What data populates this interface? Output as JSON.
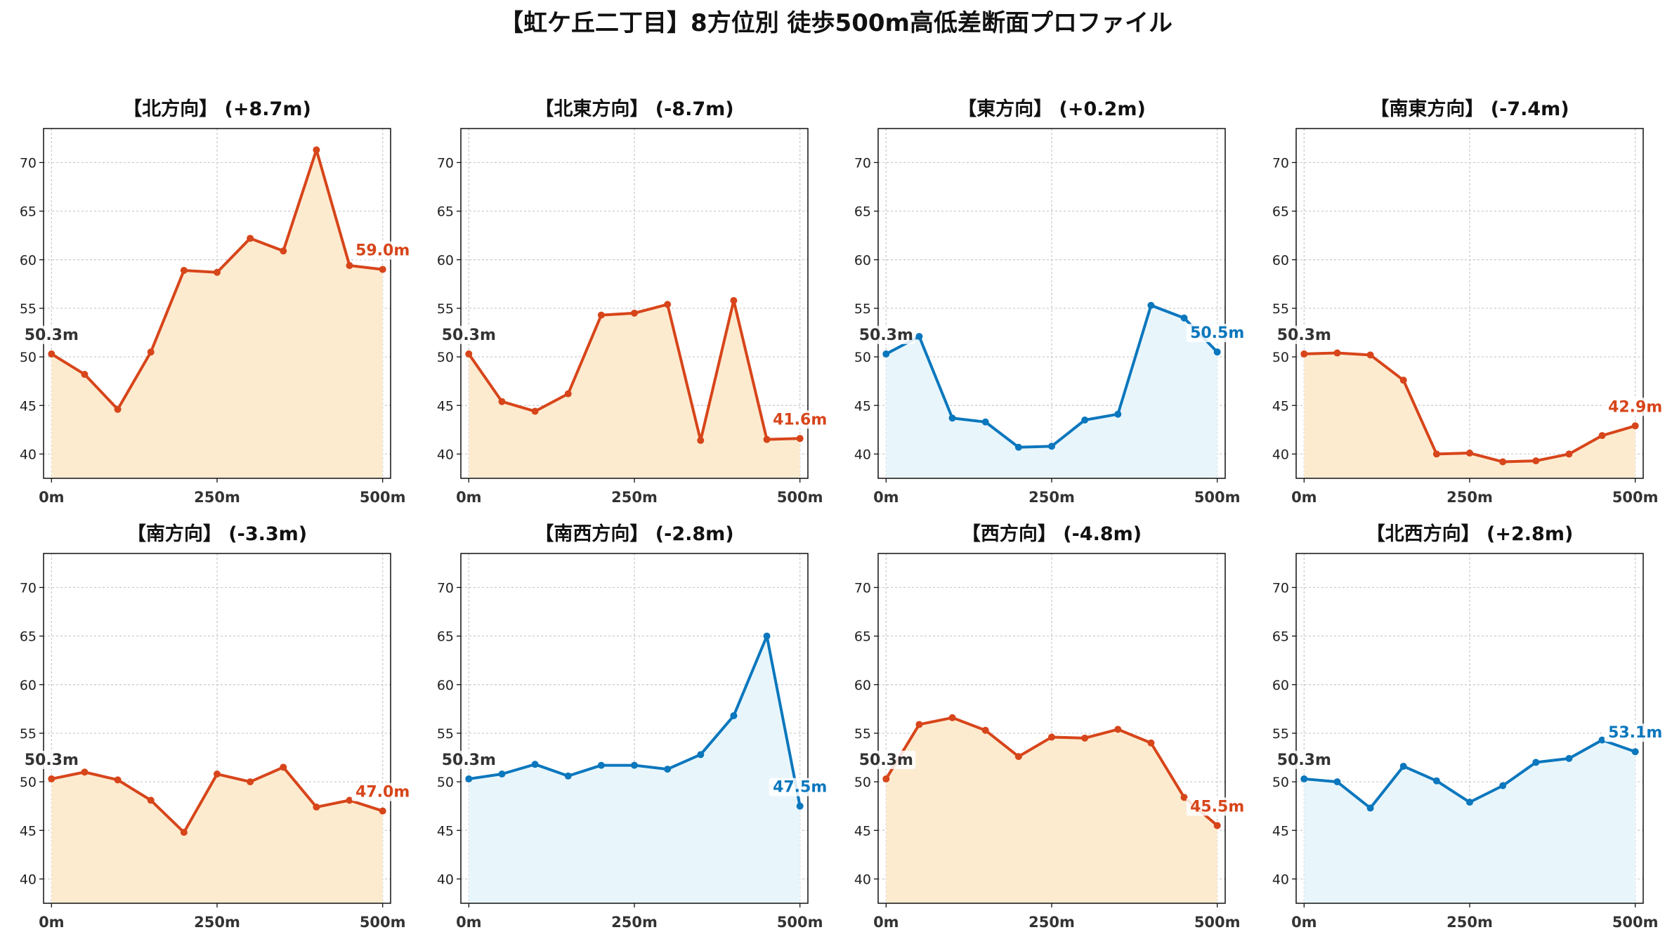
{
  "title": "【虹ケ丘二丁目】8方位別 徒歩500m高低差断面プロファイル",
  "colors": {
    "ascent_line": "#d7451a",
    "ascent_fill": "#fdebd0",
    "descent_line": "#0b77bd",
    "descent_fill": "#e8f6fc",
    "start_label": "#333333",
    "grid": "#c8c8c8"
  },
  "chart_data": [
    {
      "type": "area",
      "title": "【北方向】 (+8.7m)",
      "color_scheme": "ascent",
      "x": [
        0,
        50,
        100,
        150,
        200,
        250,
        300,
        350,
        400,
        450,
        500
      ],
      "y": [
        50.3,
        48.2,
        44.6,
        50.5,
        58.9,
        58.7,
        62.2,
        60.9,
        71.3,
        59.4,
        59.0
      ],
      "start_label": "50.3m",
      "end_label": "59.0m",
      "ylim": [
        37.5,
        73.5
      ],
      "xlim": [
        -12,
        512
      ],
      "yticks": [
        40,
        45,
        50,
        55,
        60,
        65,
        70
      ],
      "xticks": [
        0,
        250,
        500
      ],
      "xtick_labels": [
        "0m",
        "250m",
        "500m"
      ],
      "grid": true
    },
    {
      "type": "area",
      "title": "【北東方向】 (-8.7m)",
      "color_scheme": "ascent",
      "x": [
        0,
        50,
        100,
        150,
        200,
        250,
        300,
        350,
        400,
        450,
        500
      ],
      "y": [
        50.3,
        45.4,
        44.4,
        46.2,
        54.3,
        54.5,
        55.4,
        41.4,
        55.8,
        41.5,
        41.6
      ],
      "start_label": "50.3m",
      "end_label": "41.6m",
      "ylim": [
        37.5,
        73.5
      ],
      "xlim": [
        -12,
        512
      ],
      "yticks": [
        40,
        45,
        50,
        55,
        60,
        65,
        70
      ],
      "xticks": [
        0,
        250,
        500
      ],
      "xtick_labels": [
        "0m",
        "250m",
        "500m"
      ],
      "grid": true
    },
    {
      "type": "area",
      "title": "【東方向】 (+0.2m)",
      "color_scheme": "descent",
      "x": [
        0,
        50,
        100,
        150,
        200,
        250,
        300,
        350,
        400,
        450,
        500
      ],
      "y": [
        50.3,
        52.1,
        43.7,
        43.3,
        40.7,
        40.8,
        43.5,
        44.1,
        55.3,
        54.0,
        50.5
      ],
      "start_label": "50.3m",
      "end_label": "50.5m",
      "ylim": [
        37.5,
        73.5
      ],
      "xlim": [
        -12,
        512
      ],
      "yticks": [
        40,
        45,
        50,
        55,
        60,
        65,
        70
      ],
      "xticks": [
        0,
        250,
        500
      ],
      "xtick_labels": [
        "0m",
        "250m",
        "500m"
      ],
      "grid": true
    },
    {
      "type": "area",
      "title": "【南東方向】 (-7.4m)",
      "color_scheme": "ascent",
      "x": [
        0,
        50,
        100,
        150,
        200,
        250,
        300,
        350,
        400,
        450,
        500
      ],
      "y": [
        50.3,
        50.4,
        50.2,
        47.6,
        40.0,
        40.1,
        39.2,
        39.3,
        40.0,
        41.9,
        42.9
      ],
      "start_label": "50.3m",
      "end_label": "42.9m",
      "ylim": [
        37.5,
        73.5
      ],
      "xlim": [
        -12,
        512
      ],
      "yticks": [
        40,
        45,
        50,
        55,
        60,
        65,
        70
      ],
      "xticks": [
        0,
        250,
        500
      ],
      "xtick_labels": [
        "0m",
        "250m",
        "500m"
      ],
      "grid": true
    },
    {
      "type": "area",
      "title": "【南方向】 (-3.3m)",
      "color_scheme": "ascent",
      "x": [
        0,
        50,
        100,
        150,
        200,
        250,
        300,
        350,
        400,
        450,
        500
      ],
      "y": [
        50.3,
        51.0,
        50.2,
        48.1,
        44.8,
        50.8,
        50.0,
        51.5,
        47.4,
        48.1,
        47.0
      ],
      "start_label": "50.3m",
      "end_label": "47.0m",
      "ylim": [
        37.5,
        73.5
      ],
      "xlim": [
        -12,
        512
      ],
      "yticks": [
        40,
        45,
        50,
        55,
        60,
        65,
        70
      ],
      "xticks": [
        0,
        250,
        500
      ],
      "xtick_labels": [
        "0m",
        "250m",
        "500m"
      ],
      "grid": true
    },
    {
      "type": "area",
      "title": "【南西方向】 (-2.8m)",
      "color_scheme": "descent",
      "x": [
        0,
        50,
        100,
        150,
        200,
        250,
        300,
        350,
        400,
        450,
        500
      ],
      "y": [
        50.3,
        50.8,
        51.8,
        50.6,
        51.7,
        51.7,
        51.3,
        52.8,
        56.8,
        65.0,
        47.5
      ],
      "start_label": "50.3m",
      "end_label": "47.5m",
      "ylim": [
        37.5,
        73.5
      ],
      "xlim": [
        -12,
        512
      ],
      "yticks": [
        40,
        45,
        50,
        55,
        60,
        65,
        70
      ],
      "xticks": [
        0,
        250,
        500
      ],
      "xtick_labels": [
        "0m",
        "250m",
        "500m"
      ],
      "grid": true
    },
    {
      "type": "area",
      "title": "【西方向】 (-4.8m)",
      "color_scheme": "ascent",
      "x": [
        0,
        50,
        100,
        150,
        200,
        250,
        300,
        350,
        400,
        450,
        500
      ],
      "y": [
        50.3,
        55.9,
        56.6,
        55.3,
        52.6,
        54.6,
        54.5,
        55.4,
        54.0,
        48.4,
        45.5
      ],
      "start_label": "50.3m",
      "end_label": "45.5m",
      "ylim": [
        37.5,
        73.5
      ],
      "xlim": [
        -12,
        512
      ],
      "yticks": [
        40,
        45,
        50,
        55,
        60,
        65,
        70
      ],
      "xticks": [
        0,
        250,
        500
      ],
      "xtick_labels": [
        "0m",
        "250m",
        "500m"
      ],
      "grid": true
    },
    {
      "type": "area",
      "title": "【北西方向】 (+2.8m)",
      "color_scheme": "descent",
      "x": [
        0,
        50,
        100,
        150,
        200,
        250,
        300,
        350,
        400,
        450,
        500
      ],
      "y": [
        50.3,
        50.0,
        47.3,
        51.6,
        50.1,
        47.9,
        49.6,
        52.0,
        52.4,
        54.3,
        53.1
      ],
      "start_label": "50.3m",
      "end_label": "53.1m",
      "ylim": [
        37.5,
        73.5
      ],
      "xlim": [
        -12,
        512
      ],
      "yticks": [
        40,
        45,
        50,
        55,
        60,
        65,
        70
      ],
      "xticks": [
        0,
        250,
        500
      ],
      "xtick_labels": [
        "0m",
        "250m",
        "500m"
      ],
      "grid": true
    }
  ]
}
